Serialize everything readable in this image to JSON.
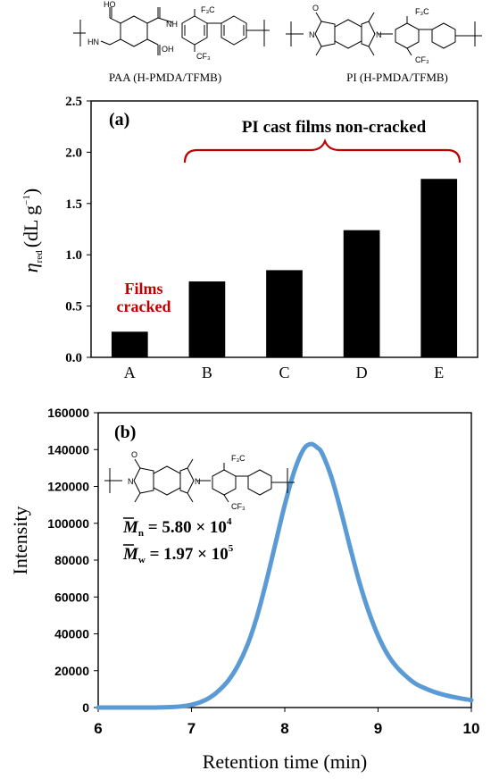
{
  "structures": {
    "paa_caption": "PAA (H-PMDA/TFMB)",
    "pi_caption": "PI (H-PMDA/TFMB)",
    "paa_atoms": {
      "ho": "HO",
      "hn": "HN",
      "nh": "NH",
      "oh": "OH",
      "cf3_top": "F₃C",
      "cf3_bottom": "CF₃"
    },
    "pi_atoms": {
      "n_left": "N",
      "n_right": "N",
      "o": "O",
      "cf3_top": "F₃C",
      "cf3_bottom": "CF₃"
    }
  },
  "chart_data": [
    {
      "type": "bar",
      "panel_label": "(a)",
      "categories": [
        "A",
        "B",
        "C",
        "D",
        "E"
      ],
      "values": [
        0.25,
        0.74,
        0.85,
        1.24,
        1.74
      ],
      "ylim": [
        0,
        2.5
      ],
      "yticks": [
        "0.0",
        "0.5",
        "1.0",
        "1.5",
        "2.0",
        "2.5"
      ],
      "ylabel_main": "η",
      "ylabel_sub": "red",
      "ylabel_units": "(dL g",
      "ylabel_sup": "−1",
      "ylabel_close": ")",
      "bar_color": "#000000",
      "annotations": {
        "cracked_line1": "Films",
        "cracked_line2": "cracked",
        "noncracked": "PI cast films non-cracked"
      },
      "annotation_color": "#c00000",
      "grid": false
    },
    {
      "type": "line",
      "panel_label": "(b)",
      "xlabel": "Retention time (min)",
      "ylabel": "Intensity",
      "xlim": [
        6,
        10
      ],
      "ylim": [
        0,
        160000
      ],
      "xticks": [
        "6",
        "7",
        "8",
        "9",
        "10"
      ],
      "yticks": [
        "0",
        "20000",
        "40000",
        "60000",
        "80000",
        "100000",
        "120000",
        "140000",
        "160000"
      ],
      "series": [
        {
          "color": "#5b9bd5",
          "x": [
            6.0,
            6.6,
            6.8,
            6.9,
            7.0,
            7.1,
            7.2,
            7.3,
            7.4,
            7.5,
            7.6,
            7.7,
            7.8,
            7.9,
            8.0,
            8.1,
            8.2,
            8.28,
            8.35,
            8.4,
            8.5,
            8.6,
            8.7,
            8.8,
            8.9,
            9.0,
            9.1,
            9.2,
            9.3,
            9.4,
            9.5,
            9.6,
            9.7,
            9.8,
            9.9,
            10.0
          ],
          "y": [
            0,
            0,
            300,
            700,
            1500,
            3000,
            5500,
            9500,
            15000,
            23000,
            34000,
            49000,
            68000,
            89000,
            110000,
            128000,
            140000,
            143000,
            141000,
            138000,
            125000,
            107000,
            87000,
            68000,
            52000,
            39000,
            29000,
            22000,
            17000,
            13000,
            10500,
            8500,
            7000,
            5800,
            4800,
            4000
          ]
        }
      ],
      "mn_label": "M",
      "mn_sub": "n",
      "mn_value": " = 5.80 × 10",
      "mn_exp": "4",
      "mw_label": "M",
      "mw_sub": "w",
      "mw_value": " = 1.97 × 10",
      "mw_exp": "5",
      "grid": false
    }
  ]
}
